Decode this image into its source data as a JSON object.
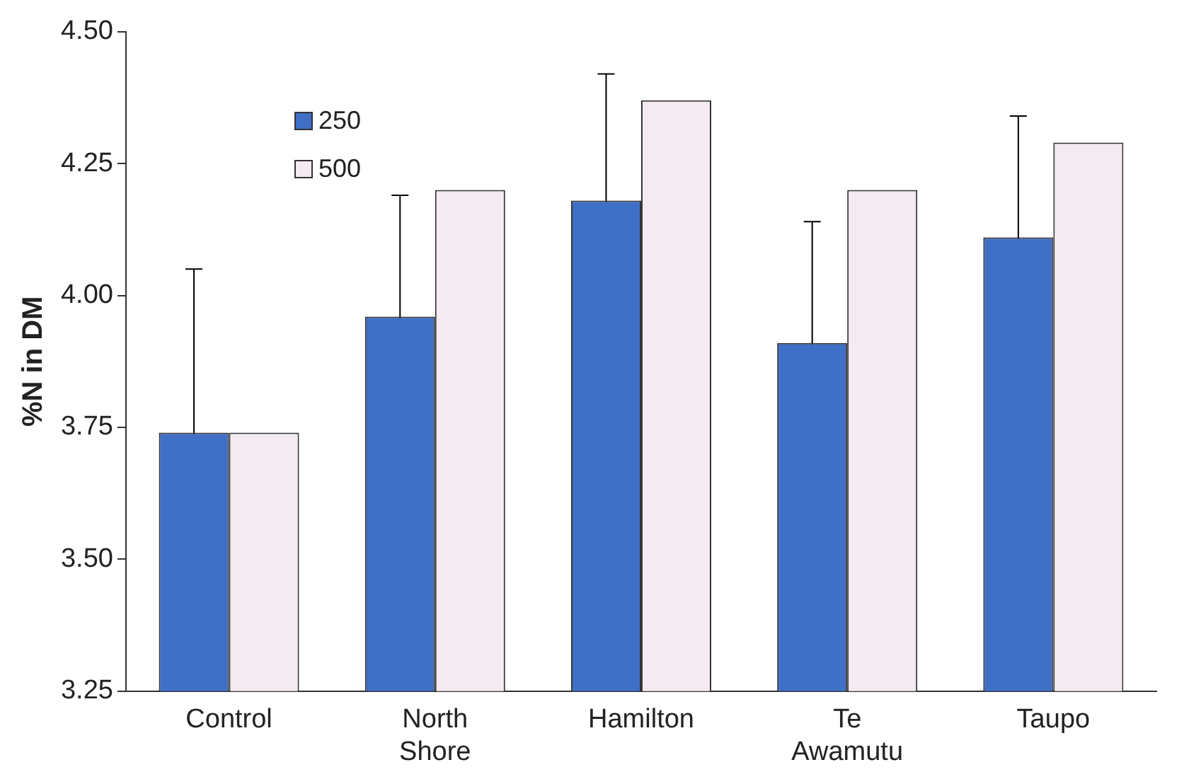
{
  "chart_data": {
    "type": "bar",
    "ylabel": "%N in DM",
    "categories": [
      "Control",
      "North Shore",
      "Hamilton",
      "Te Awamutu",
      "Taupo"
    ],
    "series": [
      {
        "name": "250",
        "color": "#3f6fc6",
        "values": [
          3.74,
          3.96,
          4.18,
          3.91,
          4.11
        ],
        "errors": [
          0.31,
          0.23,
          0.24,
          0.23,
          0.23
        ]
      },
      {
        "name": "500",
        "color": "#f4eaf2",
        "values": [
          3.74,
          4.2,
          4.37,
          4.2,
          4.29
        ]
      }
    ],
    "ylim": [
      3.25,
      4.5
    ],
    "yticks": [
      {
        "value": 3.25,
        "label": "3.25"
      },
      {
        "value": 3.5,
        "label": "3.50"
      },
      {
        "value": 3.75,
        "label": "3.75"
      },
      {
        "value": 4,
        "label": "4.00"
      },
      {
        "value": 4.25,
        "label": "4.25"
      },
      {
        "value": 4.5,
        "label": "4.50"
      }
    ],
    "grid": false,
    "legend": "top left"
  }
}
